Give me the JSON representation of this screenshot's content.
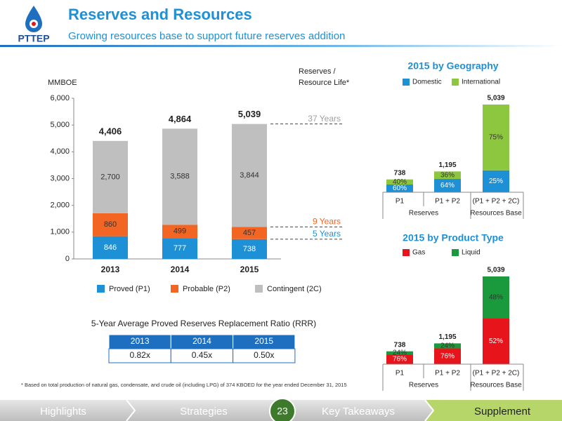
{
  "header": {
    "logo": "PTTEP",
    "title": "Reserves and Resources",
    "subtitle": "Growing resources base to support future reserves addition"
  },
  "chart_data": [
    {
      "type": "bar",
      "stacking": "values",
      "y_label": "MMBOE",
      "categories": [
        "2013",
        "2014",
        "2015"
      ],
      "series": [
        {
          "name": "Proved (P1)",
          "color": "#1e90d6",
          "label_color": "#ffffff",
          "values": [
            846,
            777,
            738
          ]
        },
        {
          "name": "Probable (P2)",
          "color": "#f26522",
          "label_color": "#333333",
          "values": [
            860,
            499,
            457
          ]
        },
        {
          "name": "Contingent (2C)",
          "color": "#bfbfbf",
          "label_color": "#333333",
          "values": [
            2700,
            3588,
            3844
          ],
          "value_labels": [
            "2,700",
            "3,588",
            "3,844"
          ]
        }
      ],
      "totals": [
        4406,
        4864,
        5039
      ],
      "total_labels": [
        "4,406",
        "4,864",
        "5,039"
      ],
      "ylim": [
        0,
        6000
      ],
      "yticks": [
        0,
        {
          "value": 1000,
          "label": "1,000"
        },
        {
          "value": 2000,
          "label": "2,000"
        },
        {
          "value": 3000,
          "label": "3,000"
        },
        {
          "value": 4000,
          "label": "4,000"
        },
        {
          "value": 5000,
          "label": "5,000"
        },
        {
          "value": 6000,
          "label": "6,000"
        }
      ],
      "life_title": [
        "Reserves /",
        "Resource Life*"
      ],
      "annotations": [
        {
          "text": "37 Years",
          "value": 5039,
          "color": "#a0a0a0"
        },
        {
          "text": "9 Years",
          "value": 1195,
          "color": "#f26522"
        },
        {
          "text": "5 Years",
          "value": 738,
          "color": "#1e90d6"
        }
      ]
    },
    {
      "type": "bar",
      "stacking": "percent",
      "title": "2015 by Geography",
      "categories": [
        "P1",
        "P1 + P2",
        "(P1 + P2 + 2C)"
      ],
      "groups": [
        "Reserves",
        "Resources Base"
      ],
      "totals": [
        738,
        1195,
        5039
      ],
      "total_labels": [
        "738",
        "1,195",
        "5,039"
      ],
      "series": [
        {
          "name": "Domestic",
          "color": "#1e90d6",
          "values": [
            60,
            64,
            25
          ],
          "value_labels": [
            "60%",
            "64%",
            "25%"
          ]
        },
        {
          "name": "International",
          "color": "#8dc63f",
          "values": [
            40,
            36,
            75
          ],
          "value_labels": [
            "40%",
            "36%",
            "75%"
          ]
        }
      ]
    },
    {
      "type": "bar",
      "stacking": "percent",
      "title": "2015 by Product Type",
      "categories": [
        "P1",
        "P1 + P2",
        "(P1 + P2 + 2C)"
      ],
      "groups": [
        "Reserves",
        "Resources Base"
      ],
      "totals": [
        738,
        1195,
        5039
      ],
      "total_labels": [
        "738",
        "1,195",
        "5,039"
      ],
      "series": [
        {
          "name": "Gas",
          "color": "#e8141b",
          "values": [
            76,
            76,
            52
          ],
          "value_labels": [
            "76%",
            "76%",
            "52%"
          ]
        },
        {
          "name": "Liquid",
          "color": "#1a9a3c",
          "values": [
            24,
            24,
            48
          ],
          "value_labels": [
            "24%",
            "24%",
            "48%"
          ]
        }
      ]
    }
  ],
  "table": {
    "title": "5-Year Average Proved Reserves Replacement Ratio (RRR)",
    "header": [
      "2013",
      "2014",
      "2015"
    ],
    "rows": [
      [
        "0.82x",
        "0.45x",
        "0.50x"
      ]
    ]
  },
  "footnote": "* Based on total production of natural gas, condensate, and crude oil (including LPG) of 374 KBOED for the year ended December 31, 2015",
  "nav": {
    "items": [
      "Highlights",
      "Strategies",
      "23",
      "Key Takeaways",
      "Supplement"
    ]
  }
}
